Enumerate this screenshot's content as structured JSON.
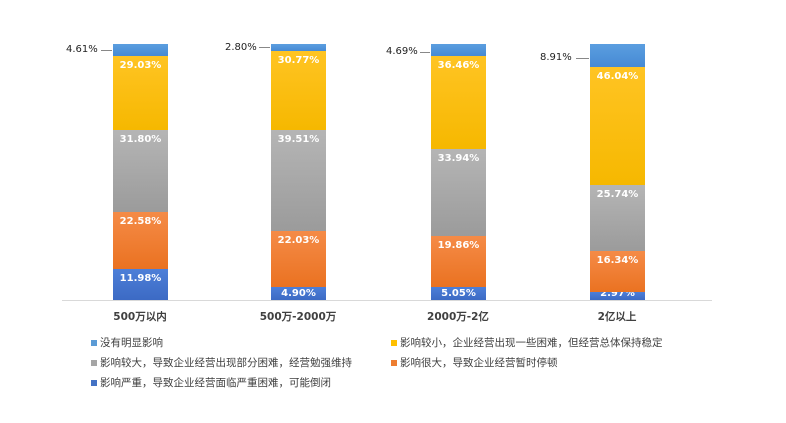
{
  "chart_data": {
    "type": "bar",
    "stacked": true,
    "normalized_percent": true,
    "title": "",
    "xlabel": "",
    "ylabel": "",
    "ylim": [
      0,
      100
    ],
    "grid": false,
    "legend_position": "bottom",
    "categories": [
      "500万以内",
      "500万-2000万",
      "2000万-2亿",
      "2亿以上"
    ],
    "series": [
      {
        "name": "影响严重，导致企业经营面临严重困难，可能倒闭",
        "color": "#4472c4",
        "values": [
          11.98,
          4.9,
          5.05,
          2.97
        ],
        "labels": [
          "11.98%",
          "4.90%",
          "5.05%",
          "2.97%"
        ]
      },
      {
        "name": "影响很大，导致企业经营暂时停顿",
        "color": "#ed7d31",
        "values": [
          22.58,
          22.03,
          19.86,
          16.34
        ],
        "labels": [
          "22.58%",
          "22.03%",
          "19.86%",
          "16.34%"
        ]
      },
      {
        "name": "影响较大，导致企业经营出现部分困难，经营勉强维持",
        "color": "#a5a5a5",
        "values": [
          31.8,
          39.51,
          33.94,
          25.74
        ],
        "labels": [
          "31.80%",
          "39.51%",
          "33.94%",
          "25.74%"
        ]
      },
      {
        "name": "影响较小，企业经营出现一些困难，但经营总体保持稳定",
        "color": "#ffc000",
        "values": [
          29.03,
          30.77,
          36.46,
          46.04
        ],
        "labels": [
          "29.03%",
          "30.77%",
          "36.46%",
          "46.04%"
        ]
      },
      {
        "name": "没有明显影响",
        "color": "#5b9bd5",
        "values": [
          4.61,
          2.8,
          4.69,
          8.91
        ],
        "labels": [
          "4.61%",
          "2.80%",
          "4.69%",
          "8.91%"
        ]
      }
    ]
  },
  "legend": [
    {
      "label": "没有明显影响",
      "color": "#5b9bd5"
    },
    {
      "label": "影响较小，企业经营出现一些困难，但经营总体保持稳定",
      "color": "#ffc000"
    },
    {
      "label": "影响较大，导致企业经营出现部分困难，经营勉强维持",
      "color": "#a5a5a5"
    },
    {
      "label": "影响很大，导致企业经营暂时停顿",
      "color": "#ed7d31"
    },
    {
      "label": "影响严重，导致企业经营面临严重困难，可能倒闭",
      "color": "#4472c4"
    }
  ],
  "outside_labels": [
    "4.61%",
    "2.80%",
    "4.69%",
    "8.91%"
  ]
}
